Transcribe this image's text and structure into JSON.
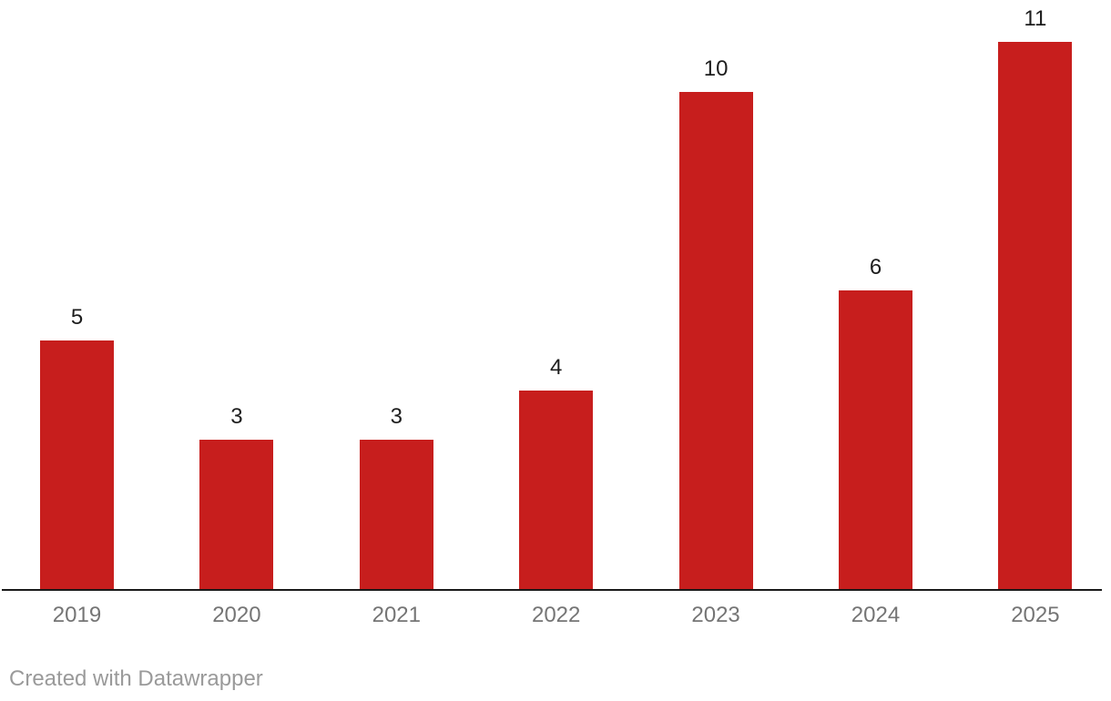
{
  "chart_data": {
    "type": "bar",
    "title": "",
    "categories": [
      "2019",
      "2020",
      "2021",
      "2022",
      "2023",
      "2024",
      "2025"
    ],
    "values": [
      5,
      3,
      3,
      4,
      10,
      6,
      11
    ],
    "xlabel": "",
    "ylabel": "",
    "ylim": [
      0,
      11
    ],
    "grid": false,
    "legend": "none",
    "value_labels_shown": true,
    "bar_color": "#c71e1d",
    "value_label_color": "#1d1d1d",
    "tick_label_color": "#757575",
    "axis_line_color": "#1a1a1a"
  },
  "attribution": {
    "text": "Created with Datawrapper",
    "color": "#9a9a9a"
  }
}
